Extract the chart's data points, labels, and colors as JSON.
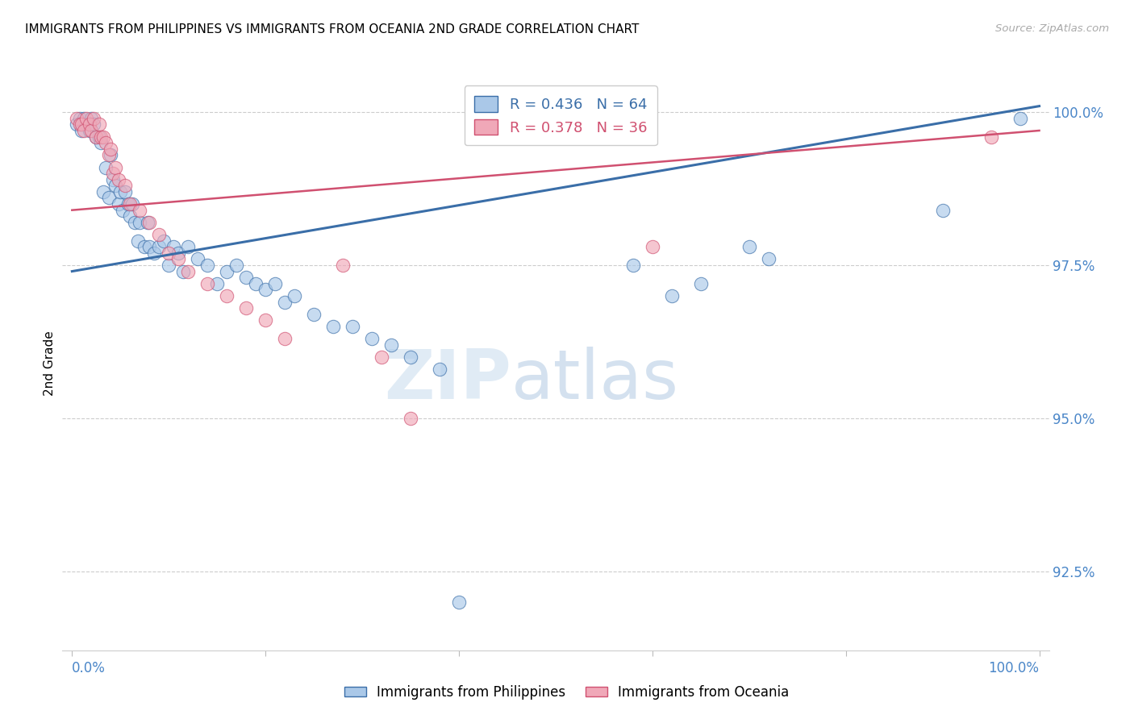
{
  "title": "IMMIGRANTS FROM PHILIPPINES VS IMMIGRANTS FROM OCEANIA 2ND GRADE CORRELATION CHART",
  "source": "Source: ZipAtlas.com",
  "ylabel": "2nd Grade",
  "ytick_labels": [
    "100.0%",
    "97.5%",
    "95.0%",
    "92.5%"
  ],
  "ytick_values": [
    1.0,
    0.975,
    0.95,
    0.925
  ],
  "xlim": [
    -0.01,
    1.01
  ],
  "ylim": [
    0.912,
    1.006
  ],
  "legend_blue_r": "0.436",
  "legend_blue_n": "64",
  "legend_pink_r": "0.378",
  "legend_pink_n": "36",
  "legend_label_blue": "Immigrants from Philippines",
  "legend_label_pink": "Immigrants from Oceania",
  "blue_color": "#aac8e8",
  "pink_color": "#f0a8b8",
  "trend_blue": "#3a6ea8",
  "trend_pink": "#d05070",
  "axis_color": "#4a86c8",
  "watermark_zip": "ZIP",
  "watermark_atlas": "atlas",
  "blue_trend_start": 0.974,
  "blue_trend_end": 1.001,
  "pink_trend_start": 0.984,
  "pink_trend_end": 0.997,
  "blue_x": [
    0.005,
    0.008,
    0.01,
    0.012,
    0.015,
    0.018,
    0.02,
    0.022,
    0.025,
    0.028,
    0.03,
    0.032,
    0.035,
    0.038,
    0.04,
    0.042,
    0.045,
    0.048,
    0.05,
    0.052,
    0.055,
    0.058,
    0.06,
    0.062,
    0.065,
    0.068,
    0.07,
    0.075,
    0.078,
    0.08,
    0.085,
    0.09,
    0.095,
    0.1,
    0.105,
    0.11,
    0.115,
    0.12,
    0.13,
    0.14,
    0.15,
    0.16,
    0.17,
    0.18,
    0.19,
    0.2,
    0.21,
    0.22,
    0.23,
    0.25,
    0.27,
    0.29,
    0.31,
    0.33,
    0.35,
    0.38,
    0.4,
    0.58,
    0.62,
    0.65,
    0.7,
    0.72,
    0.9,
    0.98
  ],
  "blue_y": [
    0.998,
    0.999,
    0.997,
    0.999,
    0.998,
    0.997,
    0.999,
    0.998,
    0.996,
    0.996,
    0.995,
    0.987,
    0.991,
    0.986,
    0.993,
    0.989,
    0.988,
    0.985,
    0.987,
    0.984,
    0.987,
    0.985,
    0.983,
    0.985,
    0.982,
    0.979,
    0.982,
    0.978,
    0.982,
    0.978,
    0.977,
    0.978,
    0.979,
    0.975,
    0.978,
    0.977,
    0.974,
    0.978,
    0.976,
    0.975,
    0.972,
    0.974,
    0.975,
    0.973,
    0.972,
    0.971,
    0.972,
    0.969,
    0.97,
    0.967,
    0.965,
    0.965,
    0.963,
    0.962,
    0.96,
    0.958,
    0.92,
    0.975,
    0.97,
    0.972,
    0.978,
    0.976,
    0.984,
    0.999
  ],
  "pink_x": [
    0.005,
    0.008,
    0.01,
    0.012,
    0.015,
    0.018,
    0.02,
    0.022,
    0.025,
    0.028,
    0.03,
    0.032,
    0.035,
    0.038,
    0.04,
    0.042,
    0.045,
    0.048,
    0.055,
    0.06,
    0.07,
    0.08,
    0.09,
    0.1,
    0.11,
    0.12,
    0.14,
    0.16,
    0.18,
    0.2,
    0.22,
    0.28,
    0.32,
    0.35,
    0.6,
    0.95
  ],
  "pink_y": [
    0.999,
    0.998,
    0.998,
    0.997,
    0.999,
    0.998,
    0.997,
    0.999,
    0.996,
    0.998,
    0.996,
    0.996,
    0.995,
    0.993,
    0.994,
    0.99,
    0.991,
    0.989,
    0.988,
    0.985,
    0.984,
    0.982,
    0.98,
    0.977,
    0.976,
    0.974,
    0.972,
    0.97,
    0.968,
    0.966,
    0.963,
    0.975,
    0.96,
    0.95,
    0.978,
    0.996
  ]
}
